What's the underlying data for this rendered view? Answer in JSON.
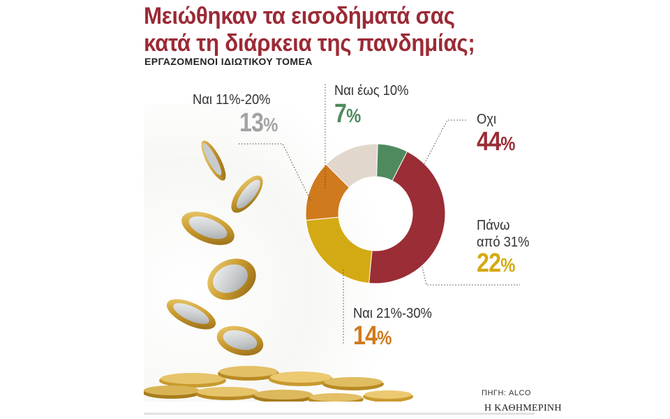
{
  "header": {
    "title_line1": "Μειώθηκαν τα εισοδήματά σας",
    "title_line2": "κατά τη διάρκεια της πανδημίας;",
    "subtitle": "ΕΡΓΑΖΟΜΕΝΟΙ ΙΔΙΩΤΙΚΟΥ ΤΟΜΕΑ"
  },
  "chart_data": {
    "type": "pie",
    "title": "Μειώθηκαν τα εισοδήματά σας κατά τη διάρκεια της πανδημίας;",
    "subtitle": "ΕΡΓΑΖΟΜΕΝΟΙ ΙΔΙΩΤΙΚΟΥ ΤΟΜΕΑ",
    "donut": true,
    "unit": "%",
    "slices": [
      {
        "label": "Οχι",
        "label_line1": "Οχι",
        "label_line2": "",
        "value": 44,
        "color": "#9a2d35"
      },
      {
        "label": "Πάνω από 31%",
        "label_line1": "Πάνω",
        "label_line2": "από 31%",
        "value": 22,
        "color": "#d4aa14"
      },
      {
        "label": "Ναι 21%-30%",
        "label_line1": "Ναι 21%-30%",
        "label_line2": "",
        "value": 14,
        "color": "#cf7a1d"
      },
      {
        "label": "Ναι 11%-20%",
        "label_line1": "Ναι 11%-20%",
        "label_line2": "",
        "value": 13,
        "color": "#e2d7cd"
      },
      {
        "label": "Ναι έως 10%",
        "label_line1": "Ναι έως 10%",
        "label_line2": "",
        "value": 7,
        "color": "#4f8a5e"
      }
    ]
  },
  "footer": {
    "source": "ΠΗΓΗ: ALCO",
    "brand": "Η ΚΑΘΗΜΕΡΙΝΗ"
  },
  "decoration": {
    "coin_icon": "coin-icon",
    "coin_gold": "#d9b24a",
    "coin_silver": "#c9ccce"
  }
}
